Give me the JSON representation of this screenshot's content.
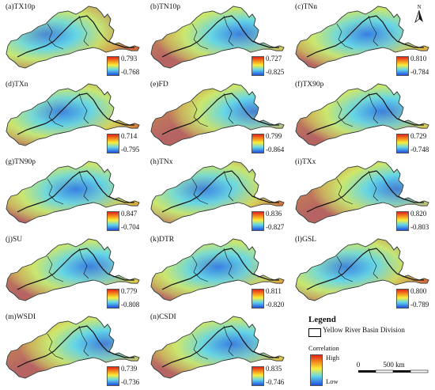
{
  "panels": [
    {
      "label": "(a)TX10p",
      "max": "0.793",
      "min": "-0.768"
    },
    {
      "label": "(b)TN10p",
      "max": "0.727",
      "min": "-0.825"
    },
    {
      "label": "(c)TNn",
      "max": "0.810",
      "min": "-0.784"
    },
    {
      "label": "(d)TXn",
      "max": "0.714",
      "min": "-0.795"
    },
    {
      "label": "(e)FD",
      "max": "0.799",
      "min": "-0.864"
    },
    {
      "label": "(f)TX90p",
      "max": "0.729",
      "min": "-0.748"
    },
    {
      "label": "(g)TN90p",
      "max": "0.847",
      "min": "-0.704"
    },
    {
      "label": "(h)TNx",
      "max": "0.836",
      "min": "-0.827"
    },
    {
      "label": "(i)TXx",
      "max": "0.820",
      "min": "-0.803"
    },
    {
      "label": "(j)SU",
      "max": "0.779",
      "min": "-0.808"
    },
    {
      "label": "(k)DTR",
      "max": "0.811",
      "min": "-0.820"
    },
    {
      "label": "(l)GSL",
      "max": "0.800",
      "min": "-0.789"
    },
    {
      "label": "(m)WSDI",
      "max": "0.739",
      "min": "-0.736"
    },
    {
      "label": "(n)CSDI",
      "max": "0.835",
      "min": "-0.746"
    }
  ],
  "north": "N",
  "legend": {
    "title": "Legend",
    "division": "Yellow River Basin Division",
    "correlation": "Correlation",
    "high": "High",
    "low": "Low",
    "scale_zero": "0",
    "scale_label": "500 km"
  },
  "colors": {
    "high": "#e0241c",
    "mid_high": "#f7941d",
    "mid": "#f7ee3a",
    "mid_low": "#64d6e8",
    "low": "#1f4fe0"
  }
}
